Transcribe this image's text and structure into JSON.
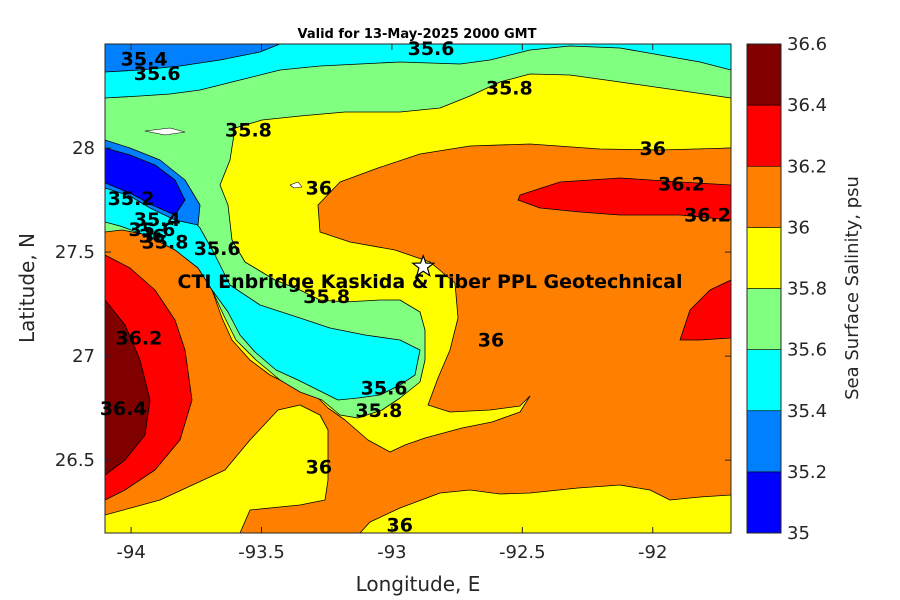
{
  "chart_data": {
    "type": "contour",
    "title": "Valid for 13-May-2025 2000 GMT",
    "xlabel": "Longitude, E",
    "ylabel": "Latitude, N",
    "xlim": [
      -94.1,
      -91.7
    ],
    "ylim": [
      26.15,
      28.5
    ],
    "x_ticks": [
      -94,
      -93.5,
      -93,
      -92.5,
      -92
    ],
    "x_tick_labels": [
      "-94",
      "-93.5",
      "-93",
      "-92.5",
      "-92"
    ],
    "y_ticks": [
      26.5,
      27,
      27.5,
      28
    ],
    "y_tick_labels": [
      "26.5",
      "27",
      "27.5",
      "28"
    ],
    "colorbar": {
      "label": "Sea Surface Salinity, psu",
      "levels": [
        35,
        35.2,
        35.4,
        35.6,
        35.8,
        36,
        36.2,
        36.4,
        36.6
      ],
      "level_labels": [
        "35",
        "35.2",
        "35.4",
        "35.6",
        "35.8",
        "36",
        "36.2",
        "36.4",
        "36.6"
      ],
      "colors": [
        "#0000ff",
        "#0080ff",
        "#00ffff",
        "#80ff80",
        "#ffff00",
        "#ff8000",
        "#ff0000",
        "#800000"
      ]
    },
    "contour_labels": [
      {
        "text": "35.4",
        "lon": -93.95,
        "lat": 28.43
      },
      {
        "text": "35.6",
        "lon": -92.85,
        "lat": 28.48
      },
      {
        "text": "35.6",
        "lon": -93.9,
        "lat": 28.36
      },
      {
        "text": "35.8",
        "lon": -92.55,
        "lat": 28.29
      },
      {
        "text": "35.8",
        "lon": -93.55,
        "lat": 28.09
      },
      {
        "text": "36",
        "lon": -92.0,
        "lat": 28.0
      },
      {
        "text": "36",
        "lon": -93.28,
        "lat": 27.81
      },
      {
        "text": "36.2",
        "lon": -91.89,
        "lat": 27.83
      },
      {
        "text": "36.2",
        "lon": -91.79,
        "lat": 27.68
      },
      {
        "text": "35.2",
        "lon": -94.0,
        "lat": 27.76
      },
      {
        "text": "35.4",
        "lon": -93.9,
        "lat": 27.66
      },
      {
        "text": "35.6",
        "lon": -93.92,
        "lat": 27.61
      },
      {
        "text": "35.8",
        "lon": -93.87,
        "lat": 27.55
      },
      {
        "text": "36",
        "lon": -93.92,
        "lat": 27.58
      },
      {
        "text": "35.6",
        "lon": -93.67,
        "lat": 27.52
      },
      {
        "text": "35.8",
        "lon": -93.25,
        "lat": 27.29
      },
      {
        "text": "36",
        "lon": -92.62,
        "lat": 27.08
      },
      {
        "text": "36.2",
        "lon": -93.97,
        "lat": 27.09
      },
      {
        "text": "36.4",
        "lon": -94.03,
        "lat": 26.75
      },
      {
        "text": "35.6",
        "lon": -93.03,
        "lat": 26.85
      },
      {
        "text": "35.8",
        "lon": -93.05,
        "lat": 26.74
      },
      {
        "text": "36",
        "lon": -93.28,
        "lat": 26.47
      },
      {
        "text": "36",
        "lon": -92.97,
        "lat": 26.19
      }
    ],
    "site": {
      "name": "CTI Enbridge  Kaskida & Tiber PPL Geotechnical",
      "lon": -92.88,
      "lat": 27.43,
      "marker": "star"
    }
  }
}
